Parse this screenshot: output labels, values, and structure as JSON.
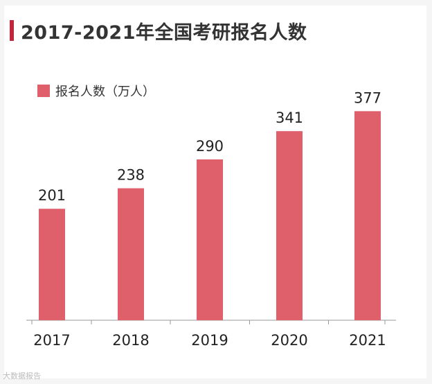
{
  "chart_data": {
    "type": "bar",
    "title": "2017-2021年全国考研报名人数",
    "categories": [
      "2017",
      "2018",
      "2019",
      "2020",
      "2021"
    ],
    "series": [
      {
        "name": "报名人数（万人）",
        "values": [
          201,
          238,
          290,
          341,
          377
        ]
      }
    ],
    "data_labels": [
      "201",
      "238",
      "290",
      "341",
      "377"
    ],
    "ylim": [
      0,
      400
    ],
    "grid": false,
    "legend": "top-left",
    "colors": {
      "bar": "#df5f6a",
      "title_accent": "#c0283a",
      "axis": "#999999",
      "text": "#222222"
    }
  },
  "watermark": "大数据报告"
}
